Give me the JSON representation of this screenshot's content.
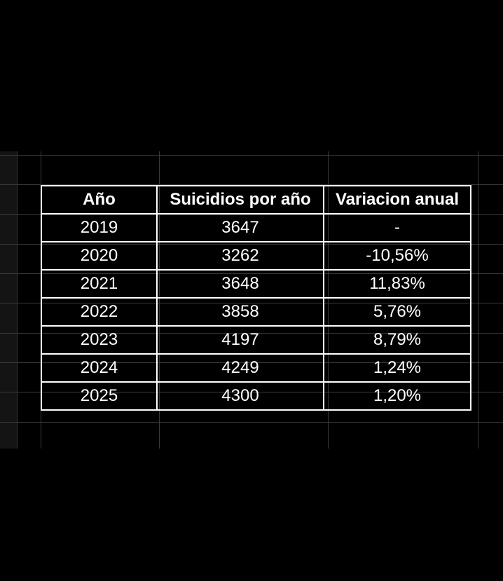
{
  "table": {
    "headers": [
      "Año",
      "Suicidios por año",
      "Variacion anual"
    ],
    "rows": [
      {
        "year": "2019",
        "count": "3647",
        "variation": "-"
      },
      {
        "year": "2020",
        "count": "3262",
        "variation": "-10,56%"
      },
      {
        "year": "2021",
        "count": "3648",
        "variation": "11,83%"
      },
      {
        "year": "2022",
        "count": "3858",
        "variation": "5,76%"
      },
      {
        "year": "2023",
        "count": "4197",
        "variation": "8,79%"
      },
      {
        "year": "2024",
        "count": "4249",
        "variation": "1,24%"
      },
      {
        "year": "2025",
        "count": "4300",
        "variation": "1,20%"
      }
    ]
  }
}
